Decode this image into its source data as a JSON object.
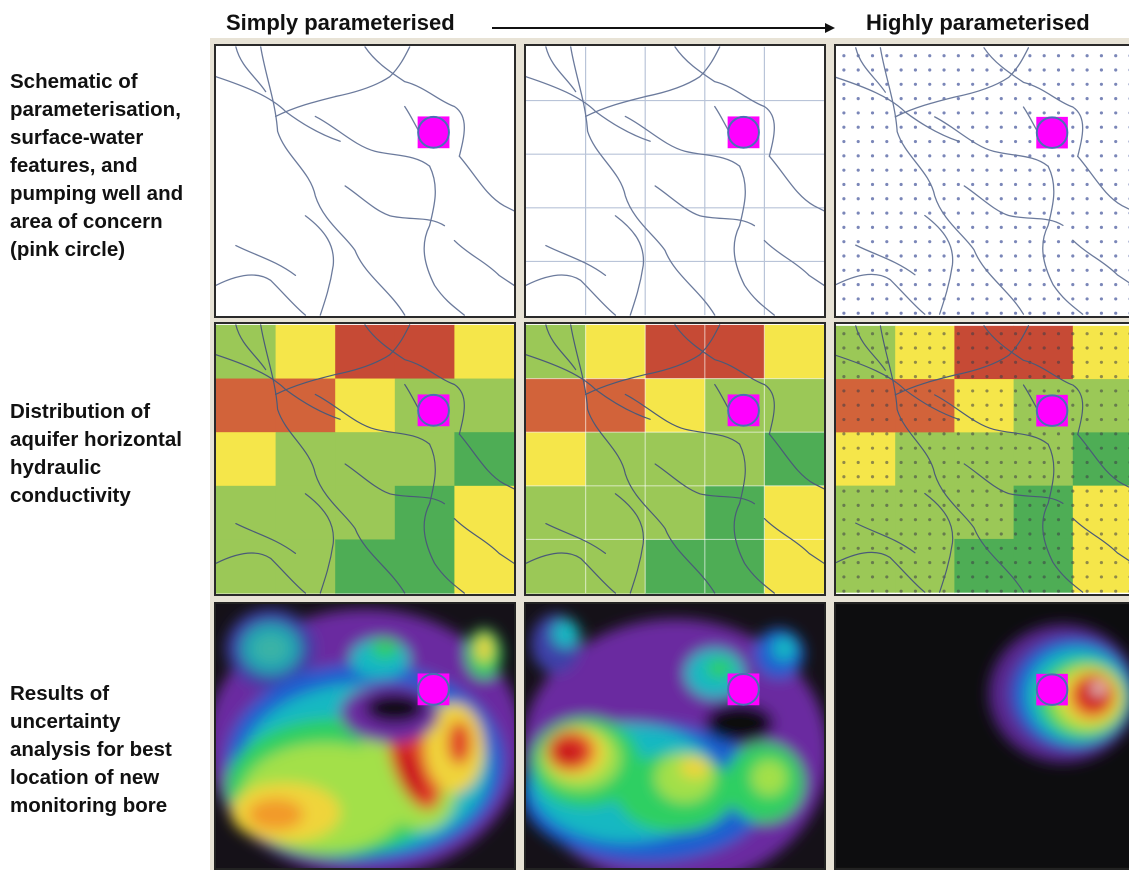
{
  "header": {
    "left_title": "Simply parameterised",
    "right_title": "Highly parameterised"
  },
  "rows": [
    {
      "label_lines": [
        "Schematic of",
        "parameterisation,",
        "surface-water",
        "features, and",
        "pumping well and",
        "area of concern",
        "(pink circle)"
      ]
    },
    {
      "label_lines": [
        "Distribution of",
        "aquifer horizontal",
        "hydraulic",
        "conductivity"
      ]
    },
    {
      "label_lines": [
        "Results of",
        "uncertainty",
        "analysis for best",
        "location of new",
        "monitoring bore"
      ]
    }
  ],
  "colors": {
    "marker": "#ff00ff",
    "marker_outline": "#4a6fb5",
    "river": "#6b7a9c",
    "grid": "#b9c4d8"
  },
  "conductivity_grid": [
    [
      "#9bc857",
      "#f5e64a",
      "#c64a35",
      "#c64a35",
      "#f5e64a"
    ],
    [
      "#d2633a",
      "#d2633a",
      "#f5e64a",
      "#9bc857",
      "#9bc857"
    ],
    [
      "#f5e64a",
      "#9bc857",
      "#9bc857",
      "#9bc857",
      "#4ead55"
    ],
    [
      "#9bc857",
      "#9bc857",
      "#9bc857",
      "#4ead55",
      "#f5e64a"
    ],
    [
      "#9bc857",
      "#9bc857",
      "#4ead55",
      "#4ead55",
      "#f5e64a"
    ]
  ]
}
